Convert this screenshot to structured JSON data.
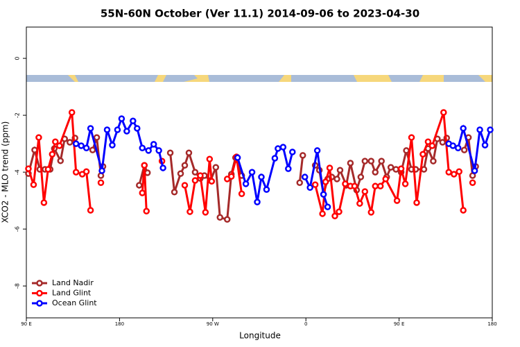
{
  "chart_data": {
    "type": "line",
    "title": "55N-60N October (Ver 11.1)   2014-09-06 to 2023-04-30",
    "xlabel": "Longitude",
    "ylabel": "XCO2 - MLO trend (ppm)",
    "xlim": [
      90,
      540
    ],
    "ylim": [
      -9.12,
      1.1
    ],
    "xticks": [
      {
        "value": 90,
        "label": "90 E"
      },
      180,
      {
        "value": 270,
        "label": "90 W"
      },
      {
        "value": 360,
        "label": "0"
      },
      {
        "value": 450,
        "label": "90 E"
      },
      {
        "value": 540,
        "label": "180"
      }
    ],
    "yticks": [
      0,
      -2,
      -4,
      -6,
      -8
    ],
    "legend": "bottom-left",
    "series": [
      {
        "name": "Land Nadir",
        "color": "#a52a2a",
        "x": [
          92,
          98,
          103,
          108,
          113,
          117,
          123,
          127,
          132,
          137,
          null,
          154,
          158,
          162,
          164,
          null,
          199,
          204,
          207,
          null,
          229,
          233,
          239,
          243,
          247,
          253,
          258,
          262,
          268,
          273,
          277,
          284,
          288,
          292,
          298,
          null,
          354,
          357,
          null,
          369,
          373,
          377,
          381,
          385,
          390,
          393,
          399,
          403,
          409,
          413,
          417,
          423,
          427,
          433,
          438,
          442,
          447,
          452,
          457,
          462,
          466,
          474,
          478,
          483,
          487,
          492,
          496,
          null,
          513,
          517,
          521,
          524
        ],
        "values": [
          -4.05,
          -3.22,
          -3.9,
          -3.9,
          -3.9,
          -3.17,
          -3.6,
          -2.83,
          -2.95,
          -2.8,
          null,
          -3.22,
          -2.78,
          -4.12,
          -3.8,
          null,
          -4.46,
          -3.76,
          -4.02,
          null,
          -3.32,
          -4.7,
          -4.05,
          -3.76,
          -3.32,
          -4.0,
          -4.22,
          -4.12,
          -4.29,
          -3.83,
          -5.59,
          -5.66,
          -4.07,
          -3.49,
          -4.12,
          null,
          -4.37,
          -3.41,
          null,
          -3.76,
          -3.93,
          -4.78,
          -4.24,
          -4.17,
          -4.24,
          -3.93,
          -4.46,
          -3.68,
          -4.63,
          -4.17,
          -3.61,
          -3.61,
          -4.0,
          -3.61,
          -4.17,
          -3.83,
          -3.9,
          -4.0,
          -3.24,
          -3.9,
          -3.9,
          -3.9,
          -3.17,
          -3.61,
          -2.83,
          -2.95,
          -2.8,
          null,
          -3.22,
          -2.78,
          -4.12,
          -3.8
        ]
      },
      {
        "name": "Land Glint",
        "color": "#ff0000",
        "x": [
          92,
          97,
          102,
          107,
          111,
          115,
          118,
          122,
          134,
          138,
          144,
          148,
          152,
          null,
          162,
          null,
          202,
          204,
          206,
          null,
          221,
          null,
          243,
          248,
          253,
          258,
          263,
          267,
          269,
          null,
          284,
          288,
          293,
          298,
          null,
          369,
          376,
          379,
          383,
          388,
          392,
          398,
          403,
          407,
          412,
          417,
          423,
          427,
          432,
          437,
          448,
          452,
          456,
          462,
          467,
          473,
          478,
          482,
          493,
          498,
          503,
          508,
          512,
          null,
          521
        ],
        "values": [
          -3.88,
          -4.44,
          -2.78,
          -5.07,
          -3.9,
          -3.37,
          -2.93,
          -3.07,
          -1.9,
          -4.0,
          -4.07,
          -3.98,
          -5.34,
          null,
          -4.37,
          null,
          -4.73,
          -3.76,
          -5.37,
          null,
          -3.61,
          null,
          -4.46,
          -5.39,
          -4.29,
          -4.12,
          -5.41,
          -3.54,
          -4.32,
          null,
          -4.24,
          -4.15,
          -3.46,
          -4.76,
          null,
          -4.44,
          -5.46,
          -4.34,
          -3.85,
          -5.54,
          -5.39,
          -4.41,
          -4.49,
          -4.49,
          -5.1,
          -4.68,
          -5.41,
          -4.49,
          -4.49,
          -4.24,
          -5.0,
          -3.88,
          -4.41,
          -2.78,
          -5.07,
          -3.37,
          -2.93,
          -3.07,
          -1.9,
          -4.0,
          -4.07,
          -3.98,
          -5.34,
          null,
          -4.37
        ]
      },
      {
        "name": "Ocean Glint",
        "color": "#0000ff",
        "x": [
          138,
          143,
          148,
          152,
          163,
          168,
          173,
          178,
          182,
          187,
          193,
          197,
          202,
          208,
          213,
          218,
          222,
          null,
          294,
          302,
          308,
          313,
          317,
          322,
          330,
          333,
          338,
          343,
          347,
          null,
          359,
          364,
          371,
          377,
          381,
          null,
          498,
          502,
          507,
          512,
          523,
          528,
          533,
          538
        ],
        "values": [
          -3.0,
          -3.07,
          -3.15,
          -2.46,
          -3.95,
          -2.51,
          -3.05,
          -2.51,
          -2.12,
          -2.56,
          -2.2,
          -2.46,
          -3.15,
          -3.24,
          -3.02,
          -3.24,
          -3.85,
          null,
          -3.49,
          -4.41,
          -4.0,
          -5.05,
          -4.17,
          -4.61,
          -3.51,
          -3.17,
          -3.12,
          -3.88,
          -3.29,
          null,
          -4.17,
          -4.54,
          -3.24,
          -4.78,
          -5.22,
          null,
          -3.0,
          -3.07,
          -3.15,
          -2.46,
          -3.95,
          -2.51,
          -3.05,
          -2.51
        ]
      }
    ]
  }
}
